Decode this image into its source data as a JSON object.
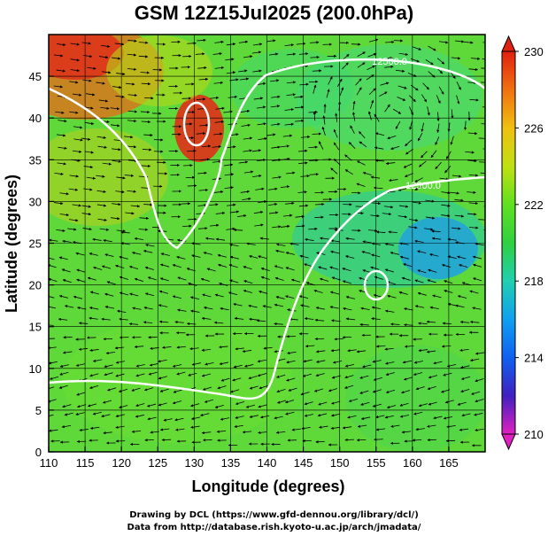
{
  "chart_data": {
    "type": "heatmap",
    "title": "GSM 12Z15Jul2025 (200.0hPa)",
    "xlabel": "Longitude (degrees)",
    "ylabel": "Latitude  (degrees)",
    "xlim": [
      110,
      170
    ],
    "ylim": [
      0,
      50
    ],
    "x_ticks": [
      110,
      115,
      120,
      125,
      130,
      135,
      140,
      145,
      150,
      155,
      160,
      165
    ],
    "y_ticks": [
      0,
      5,
      10,
      15,
      20,
      25,
      30,
      35,
      40,
      45
    ],
    "grid": true,
    "field": "temperature (colour shading) with wind streamlines and geopotential height contours",
    "colorbar": {
      "min": 210,
      "max": 230,
      "tick_labels": [
        "230",
        "226",
        "222",
        "218",
        "214",
        "210"
      ],
      "tick_values": [
        230,
        226,
        222,
        218,
        214,
        210
      ],
      "placement": "right",
      "colors": [
        "#e020c0",
        "#4020c0",
        "#1060f0",
        "#10a0f0",
        "#20d0b0",
        "#30d040",
        "#60e020",
        "#c0e010",
        "#f0c010",
        "#f07010",
        "#e02010"
      ]
    },
    "contour_labels": [
      "12500.0",
      "12500.0"
    ],
    "contour_color": "#ffffff",
    "approx_field": [
      {
        "lon": 112,
        "lat": 46,
        "value": 229
      },
      {
        "lon": 118,
        "lat": 46,
        "value": 229
      },
      {
        "lon": 130,
        "lat": 40,
        "value": 229
      },
      {
        "lon": 113,
        "lat": 35,
        "value": 225
      },
      {
        "lon": 145,
        "lat": 40,
        "value": 223
      },
      {
        "lon": 160,
        "lat": 40,
        "value": 223
      },
      {
        "lon": 160,
        "lat": 26,
        "value": 219
      },
      {
        "lon": 153,
        "lat": 22,
        "value": 221
      },
      {
        "lon": 135,
        "lat": 20,
        "value": 222
      },
      {
        "lon": 120,
        "lat": 10,
        "value": 223
      },
      {
        "lon": 140,
        "lat": 5,
        "value": 222
      },
      {
        "lon": 160,
        "lat": 10,
        "value": 222
      }
    ]
  },
  "credits": {
    "line1": "Drawing by DCL (https://www.gfd-dennou.org/library/dcl/)",
    "line2": "Data from http://database.rish.kyoto-u.ac.jp/arch/jmadata/"
  }
}
